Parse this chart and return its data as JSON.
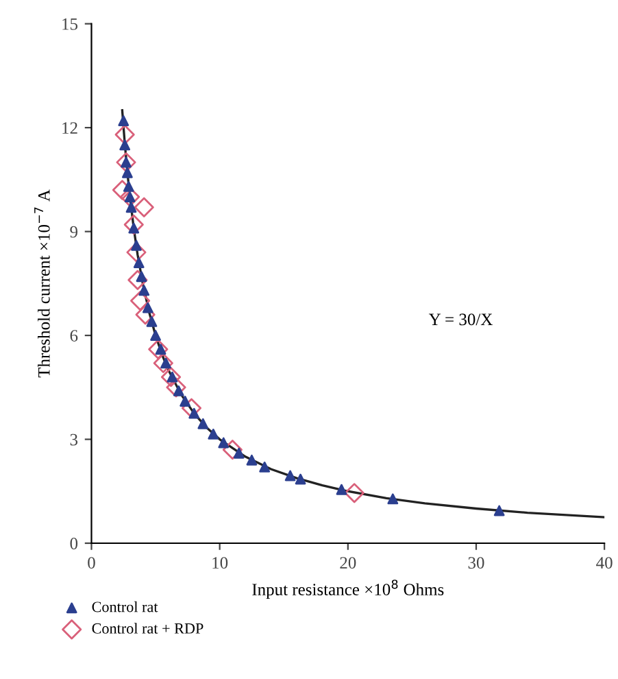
{
  "chart_data": {
    "type": "scatter",
    "xlabel": "Input resistance ×10$^{8}$ Ohms",
    "ylabel": "Threshold current ×10$^{−7}$ A",
    "xlim": [
      0,
      40
    ],
    "xticks": [
      0,
      10,
      20,
      30,
      40
    ],
    "ylim": [
      0,
      15
    ],
    "yticks": [
      0,
      3,
      6,
      9,
      12,
      15
    ],
    "grid": false,
    "legend": "bottom left",
    "annotations": [
      "Y = 30/X"
    ],
    "series": [
      {
        "name": "Control rat",
        "marker": "triangle",
        "color": "#2b3f8f",
        "x": [
          2.5,
          2.6,
          2.7,
          2.8,
          2.9,
          3.0,
          3.1,
          3.3,
          3.5,
          3.7,
          3.9,
          4.1,
          4.4,
          4.7,
          5.0,
          5.4,
          5.8,
          6.3,
          6.8,
          7.3,
          8.0,
          8.7,
          9.5,
          10.3,
          11.5,
          12.5,
          13.5,
          15.5,
          16.3,
          19.5,
          23.5,
          31.8
        ],
        "values": [
          12.2,
          11.5,
          11,
          10.7,
          10.3,
          10,
          9.7,
          9.1,
          8.6,
          8.1,
          7.7,
          7.3,
          6.8,
          6.4,
          6.0,
          5.6,
          5.2,
          4.8,
          4.4,
          4.1,
          3.75,
          3.45,
          3.15,
          2.9,
          2.6,
          2.4,
          2.2,
          1.95,
          1.85,
          1.55,
          1.28,
          0.94
        ]
      },
      {
        "name": "Control rat + RDP",
        "marker": "diamond",
        "color": "#d9607a",
        "x": [
          2.4,
          2.6,
          2.7,
          3.0,
          4.1,
          3.3,
          3.5,
          3.6,
          3.8,
          4.2,
          5.2,
          5.6,
          6.2,
          6.6,
          7.8,
          11,
          20.5
        ],
        "values": [
          10.2,
          11.8,
          11,
          10,
          9.7,
          9.2,
          8.4,
          7.6,
          7.0,
          6.6,
          5.6,
          5.2,
          4.8,
          4.5,
          3.9,
          2.7,
          1.45
        ]
      },
      {
        "type": "line",
        "color": "#222222",
        "line_style": "solid",
        "marker": "none",
        "x": [
          2.4,
          2.6,
          2.8,
          3,
          3.3,
          3.6,
          4,
          4.5,
          5,
          5.5,
          6,
          7,
          8,
          9,
          10,
          12,
          14,
          16,
          18,
          20,
          23,
          26,
          30,
          34,
          40
        ],
        "values": [
          12.5,
          11.54,
          10.71,
          10,
          9.09,
          8.33,
          7.5,
          6.67,
          6,
          5.45,
          5,
          4.29,
          3.75,
          3.33,
          3,
          2.5,
          2.14,
          1.88,
          1.67,
          1.5,
          1.3,
          1.15,
          1,
          0.88,
          0.75
        ]
      }
    ]
  }
}
